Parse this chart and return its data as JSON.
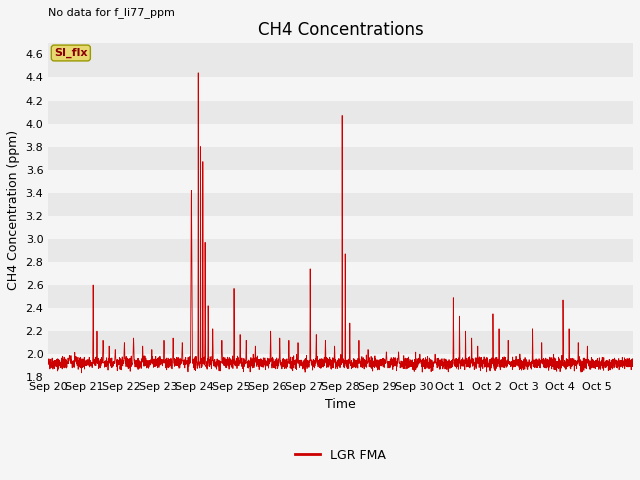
{
  "title": "CH4 Concentrations",
  "topleft_text": "No data for f_li77_ppm",
  "ylabel": "CH4 Concentration (ppm)",
  "xlabel": "Time",
  "ylim": [
    1.8,
    4.7
  ],
  "yticks": [
    1.8,
    2.0,
    2.2,
    2.4,
    2.6,
    2.8,
    3.0,
    3.2,
    3.4,
    3.6,
    3.8,
    4.0,
    4.2,
    4.4,
    4.6
  ],
  "line_color": "#cc0000",
  "line_width": 0.6,
  "legend_label": "LGR FMA",
  "si_flx_label": "SI_flx",
  "fig_facecolor": "#f5f5f5",
  "plot_bg_light": "#e8e8e8",
  "plot_bg_white": "#f5f5f5",
  "title_fontsize": 12,
  "label_fontsize": 9,
  "tick_fontsize": 8,
  "topleft_fontsize": 8
}
